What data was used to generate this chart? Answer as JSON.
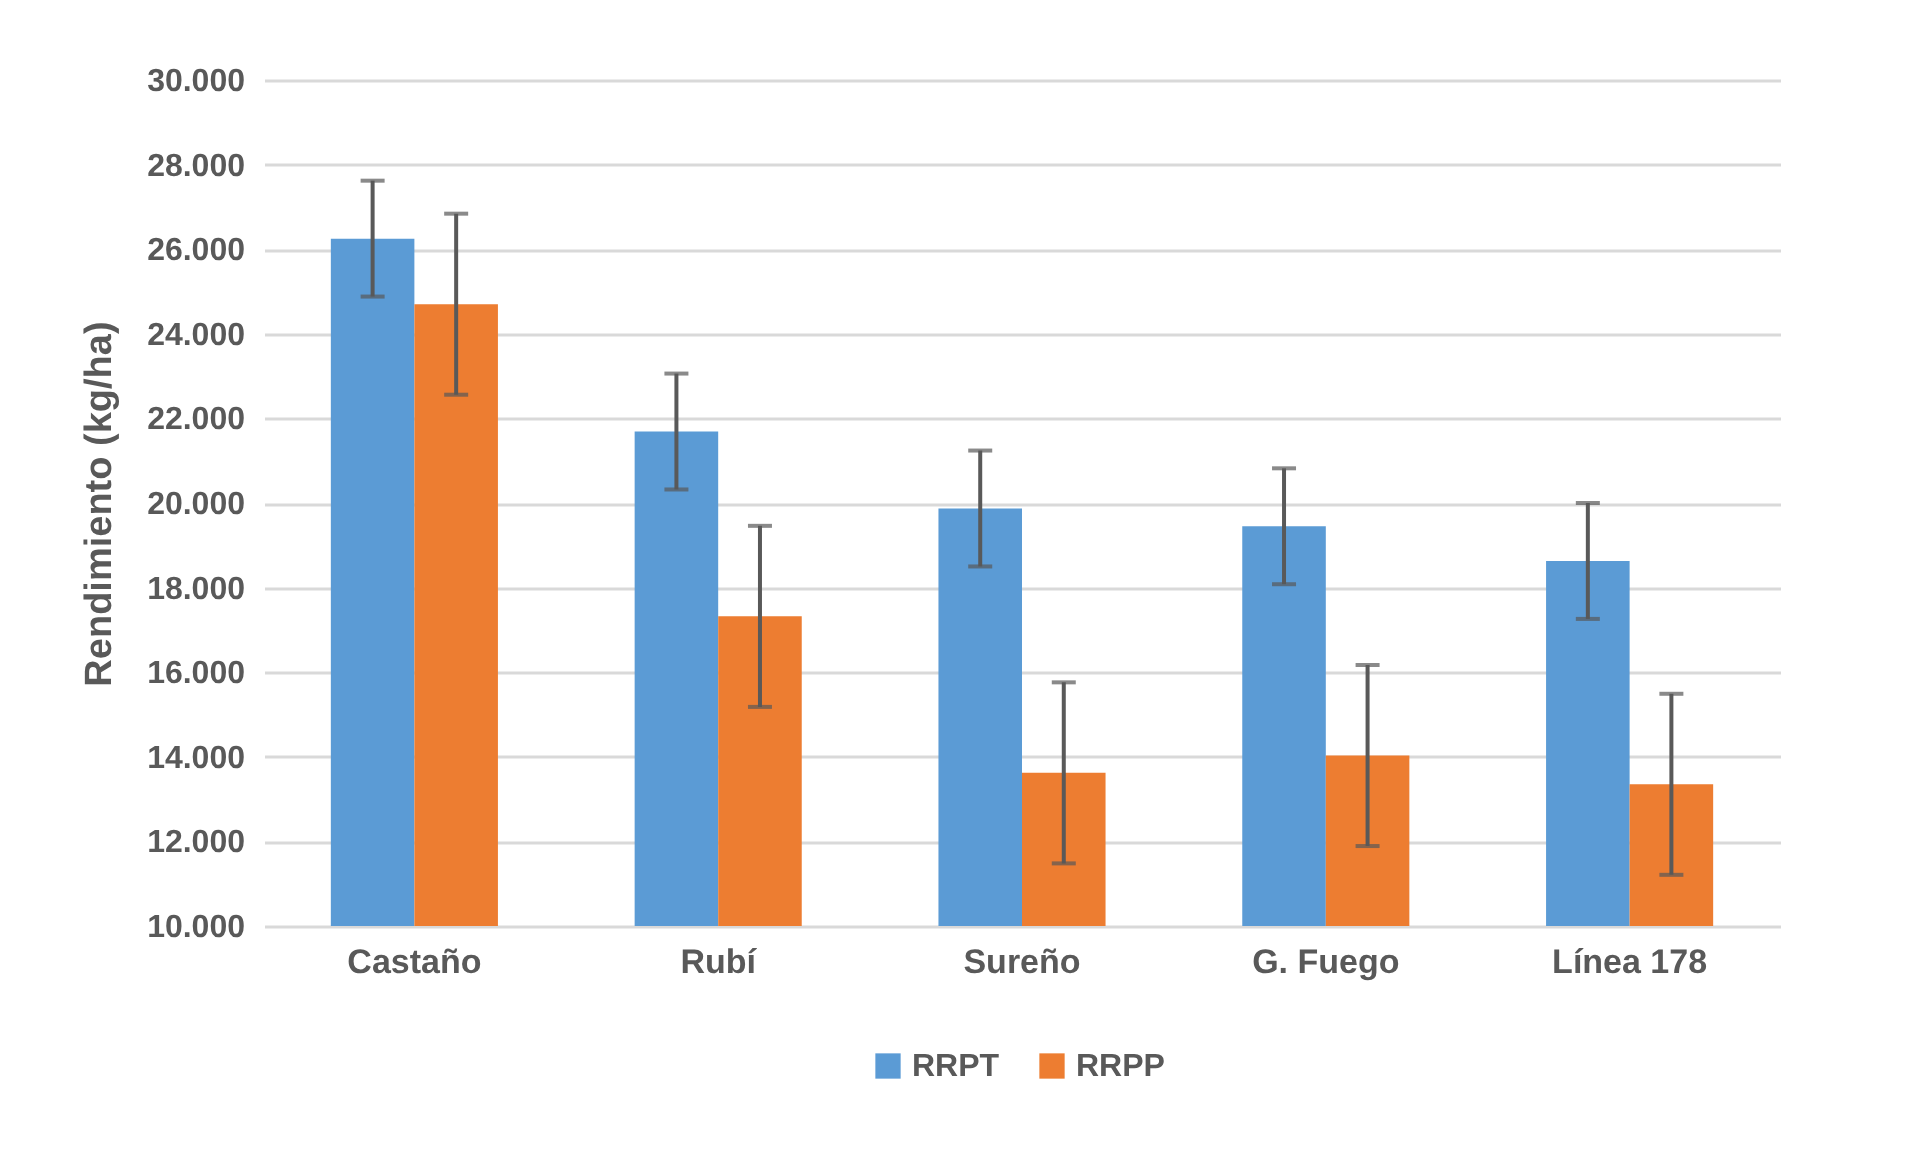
{
  "chart_data": {
    "type": "bar",
    "ylabel": "Rendimiento (kg/ha)",
    "categories": [
      "Castaño",
      "Rubí",
      "Sureño",
      "G. Fuego",
      "Línea 178"
    ],
    "series": [
      {
        "name": "RRPT",
        "color": "#5b9bd5",
        "values": [
          26250,
          21690,
          19870,
          19450,
          18630
        ],
        "errors": [
          1370,
          1370,
          1370,
          1370,
          1370
        ]
      },
      {
        "name": "RRPP",
        "color": "#ed7d31",
        "values": [
          24700,
          17320,
          13620,
          14030,
          13350
        ],
        "errors": [
          2140,
          2140,
          2140,
          2140,
          2140
        ]
      }
    ],
    "ylim": [
      10000,
      30000
    ],
    "yticks": [
      {
        "value": 10000,
        "label": "10.000"
      },
      {
        "value": 12000,
        "label": "12.000"
      },
      {
        "value": 14000,
        "label": "14.000"
      },
      {
        "value": 16000,
        "label": "16.000"
      },
      {
        "value": 18000,
        "label": "18.000"
      },
      {
        "value": 20000,
        "label": "20.000"
      },
      {
        "value": 22000,
        "label": "22.000"
      },
      {
        "value": 24000,
        "label": "24.000"
      },
      {
        "value": 26000,
        "label": "26.000"
      },
      {
        "value": 28000,
        "label": "28.000"
      },
      {
        "value": 30000,
        "label": "30.000"
      }
    ],
    "grid": "y",
    "legend": "bottom"
  }
}
